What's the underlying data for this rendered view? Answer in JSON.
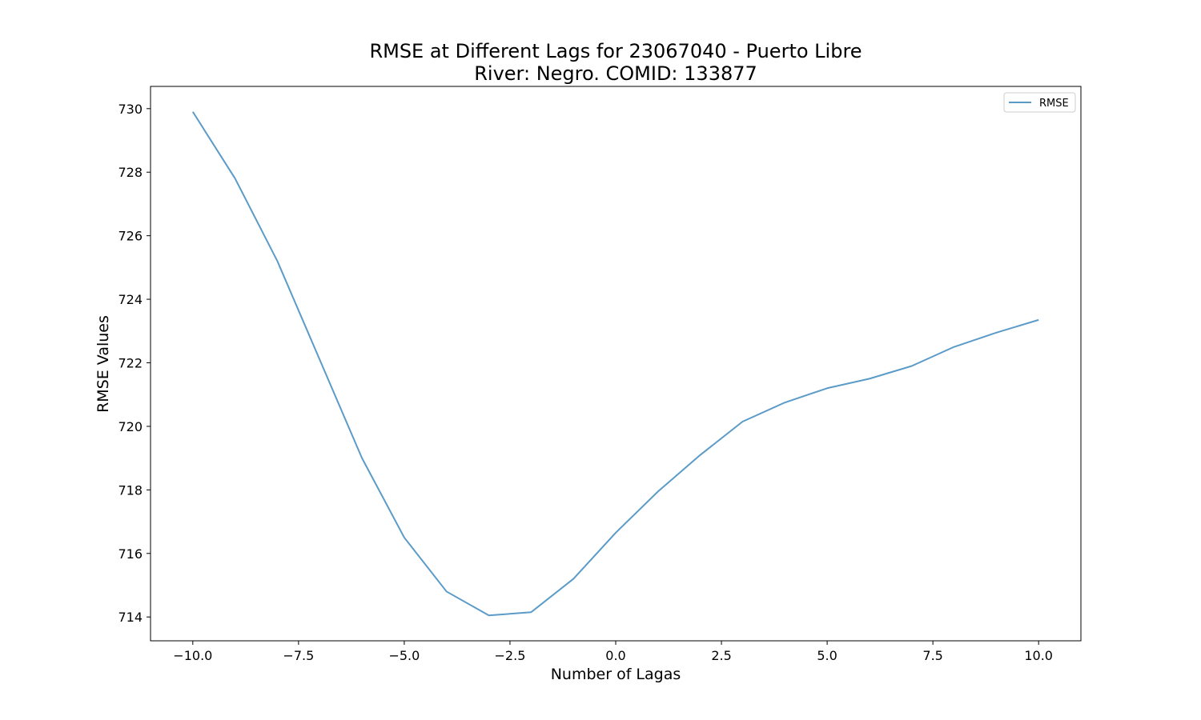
{
  "chart_data": {
    "type": "line",
    "title": "RMSE at Different Lags for 23067040 - Puerto Libre",
    "subtitle": "River: Negro. COMID: 133877",
    "xlabel": "Number of Lagas",
    "ylabel": "RMSE Values",
    "xlim": [
      -11,
      11
    ],
    "ylim": [
      713.25,
      730.7
    ],
    "xticks": [
      -10.0,
      -7.5,
      -5.0,
      -2.5,
      0.0,
      2.5,
      5.0,
      7.5,
      10.0
    ],
    "xtick_labels": [
      "−10.0",
      "−7.5",
      "−5.0",
      "−2.5",
      "0.0",
      "2.5",
      "5.0",
      "7.5",
      "10.0"
    ],
    "yticks": [
      714,
      716,
      718,
      720,
      722,
      724,
      726,
      728,
      730
    ],
    "ytick_labels": [
      "714",
      "716",
      "718",
      "720",
      "722",
      "724",
      "726",
      "728",
      "730"
    ],
    "grid": false,
    "legend_position": "upper right",
    "series": [
      {
        "name": "RMSE",
        "color": "#5b9bc8",
        "x": [
          -10,
          -9,
          -8,
          -7,
          -6,
          -5,
          -4,
          -3,
          -2,
          -1,
          0,
          1,
          2,
          3,
          4,
          5,
          6,
          7,
          8,
          9,
          10
        ],
        "y": [
          729.9,
          727.8,
          725.2,
          722.1,
          719.0,
          716.5,
          714.8,
          714.05,
          714.15,
          715.2,
          716.65,
          717.95,
          719.1,
          720.15,
          720.75,
          721.2,
          721.5,
          721.9,
          722.5,
          722.95,
          723.35
        ]
      }
    ]
  }
}
